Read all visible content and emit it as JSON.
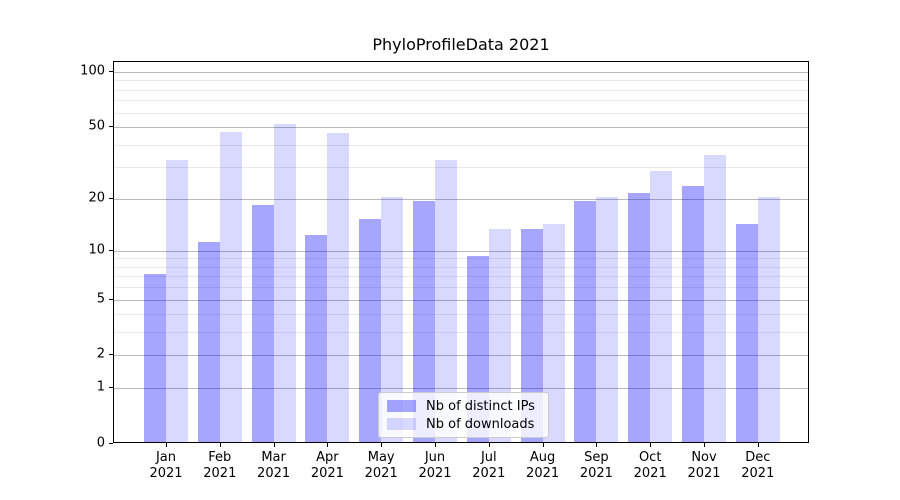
{
  "figure": {
    "title": "PhyloProfileData 2021"
  },
  "colors": {
    "ips_fill": "#a6a6ff",
    "downloads_fill": "#d9d9ff",
    "bar_base": "#0000ff",
    "grid_major": "#bababa",
    "grid_minor": "#e9e9e9",
    "axis": "#000000",
    "text": "#000000",
    "legend_border": "#cccccc"
  },
  "chart_data": {
    "type": "bar",
    "title": "PhyloProfileData 2021",
    "categories": [
      "Jan",
      "Feb",
      "Mar",
      "Apr",
      "May",
      "Jun",
      "Jul",
      "Aug",
      "Sep",
      "Oct",
      "Nov",
      "Dec"
    ],
    "category_year": "2021",
    "series": [
      {
        "name": "Nb of distinct IPs",
        "key": "ips",
        "values": [
          7,
          11,
          18,
          12,
          15,
          19,
          9,
          13,
          19,
          21,
          23,
          14
        ]
      },
      {
        "name": "Nb of downloads",
        "key": "downloads",
        "values": [
          32,
          46,
          51,
          45,
          20,
          32,
          13,
          14,
          20,
          28,
          34,
          20
        ]
      }
    ],
    "xlabel": "",
    "ylabel": "",
    "y_scale": "log(1+x)",
    "y_tick_values": [
      0,
      1,
      2,
      5,
      10,
      20,
      50,
      100
    ],
    "y_minor_grid_values": [
      3,
      4,
      6,
      7,
      8,
      9,
      30,
      40,
      60,
      70,
      80,
      90
    ],
    "ylim": [
      0,
      113
    ],
    "grid": true,
    "legend": {
      "position": "lower-center",
      "entries": [
        "Nb of distinct IPs",
        "Nb of downloads"
      ]
    }
  }
}
